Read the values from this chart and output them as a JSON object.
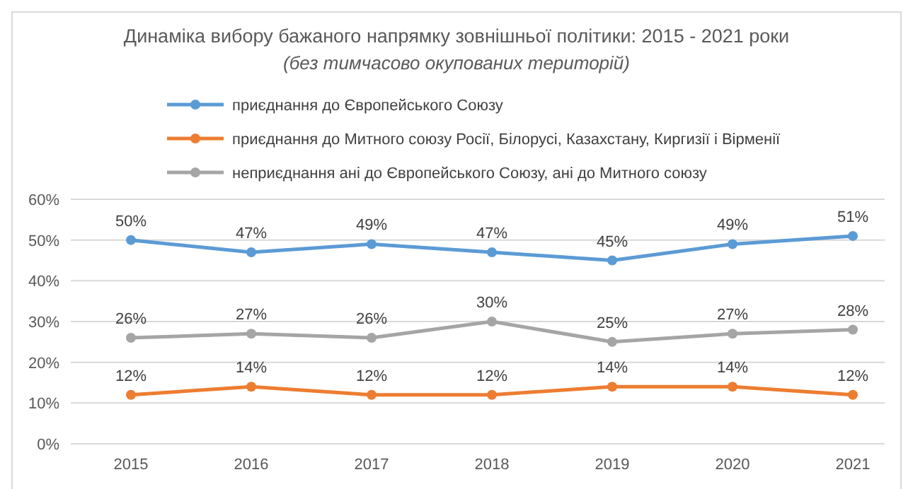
{
  "chart_data": {
    "type": "line",
    "title": "Динаміка вибору бажаного напрямку зовнішньої політики: 2015 - 2021 роки",
    "subtitle": "(без тимчасово окупованих територій)",
    "categories": [
      "2015",
      "2016",
      "2017",
      "2018",
      "2019",
      "2020",
      "2021"
    ],
    "series": [
      {
        "name": "приєднання до Європейського Союзу",
        "color": "#5b9bd5",
        "values": [
          50,
          47,
          49,
          47,
          45,
          49,
          51
        ],
        "value_labels": [
          "50%",
          "47%",
          "49%",
          "47%",
          "45%",
          "49%",
          "51%"
        ]
      },
      {
        "name": "приєднання до Митного союзу Росії, Білорусі, Казахстану, Киргизії і Вірменії",
        "color": "#ed7d31",
        "values": [
          12,
          14,
          12,
          12,
          14,
          14,
          12
        ],
        "value_labels": [
          "12%",
          "14%",
          "12%",
          "12%",
          "14%",
          "14%",
          "12%"
        ]
      },
      {
        "name": "неприєднання ані до Європейського Союзу, ані до Митного союзу",
        "color": "#a5a5a5",
        "values": [
          26,
          27,
          26,
          30,
          25,
          27,
          28
        ],
        "value_labels": [
          "26%",
          "27%",
          "26%",
          "30%",
          "25%",
          "27%",
          "28%"
        ]
      }
    ],
    "ylim": [
      0,
      60
    ],
    "yticks": [
      {
        "value": 0,
        "label": "0%"
      },
      {
        "value": 10,
        "label": "10%"
      },
      {
        "value": 20,
        "label": "20%"
      },
      {
        "value": 30,
        "label": "30%"
      },
      {
        "value": 40,
        "label": "40%"
      },
      {
        "value": 50,
        "label": "50%"
      },
      {
        "value": 60,
        "label": "60%"
      }
    ],
    "grid": "y",
    "legend": "top left",
    "marker": "circle",
    "line_style": "solid"
  }
}
